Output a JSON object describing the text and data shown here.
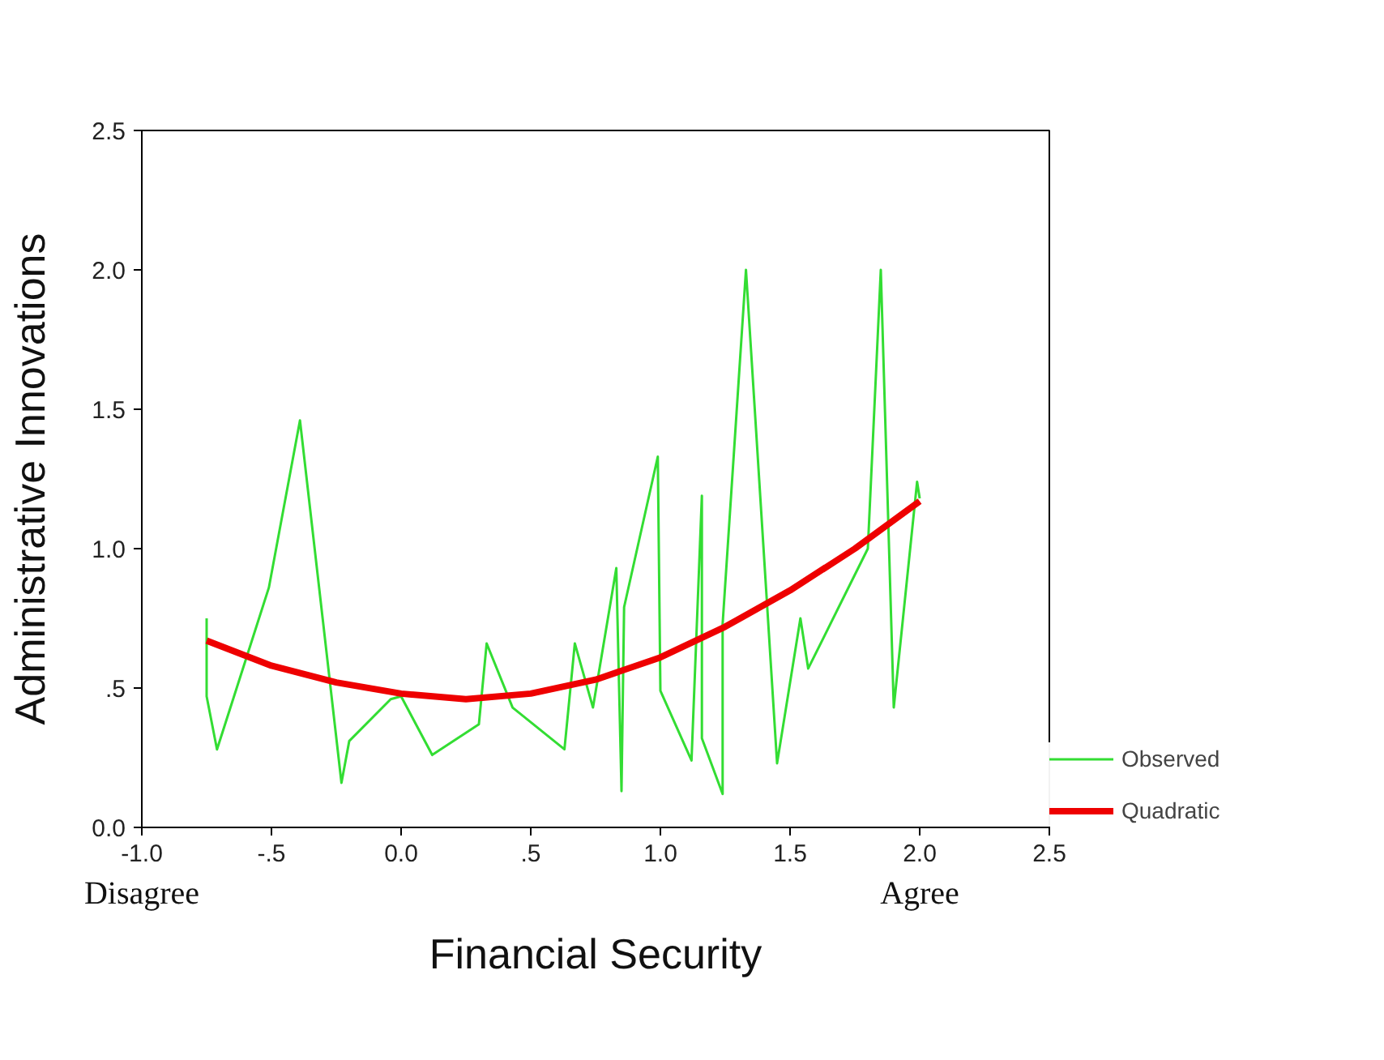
{
  "chart_data": {
    "type": "line",
    "xlabel": "Financial Security",
    "ylabel": "Administrative Innovations",
    "xlim": [
      -1.0,
      2.5
    ],
    "ylim": [
      0.0,
      2.5
    ],
    "xticks": [
      {
        "value": -1.0,
        "label": "-1.0"
      },
      {
        "value": -0.5,
        "label": "-.5"
      },
      {
        "value": 0.0,
        "label": "0.0"
      },
      {
        "value": 0.5,
        "label": ".5"
      },
      {
        "value": 1.0,
        "label": "1.0"
      },
      {
        "value": 1.5,
        "label": "1.5"
      },
      {
        "value": 2.0,
        "label": "2.0"
      },
      {
        "value": 2.5,
        "label": "2.5"
      }
    ],
    "yticks": [
      {
        "value": 0.0,
        "label": "0.0"
      },
      {
        "value": 0.5,
        "label": ".5"
      },
      {
        "value": 1.0,
        "label": "1.0"
      },
      {
        "value": 1.5,
        "label": "1.5"
      },
      {
        "value": 2.0,
        "label": "2.0"
      },
      {
        "value": 2.5,
        "label": "2.5"
      }
    ],
    "grid": false,
    "legend": "bottom right",
    "marker": "none",
    "line_style": "solid",
    "annotations": [
      "Disagree",
      "Agree"
    ],
    "series": [
      {
        "name": "Observed",
        "color": "#33dd33",
        "x": [
          -0.75,
          -0.75,
          -0.71,
          -0.51,
          -0.39,
          -0.23,
          -0.2,
          -0.04,
          0.0,
          0.12,
          0.3,
          0.33,
          0.43,
          0.63,
          0.67,
          0.74,
          0.83,
          0.85,
          0.86,
          0.99,
          1.0,
          1.12,
          1.16,
          1.16,
          1.24,
          1.24,
          1.33,
          1.45,
          1.54,
          1.57,
          1.8,
          1.85,
          1.9,
          1.99,
          2.0
        ],
        "values": [
          0.75,
          0.47,
          0.28,
          0.86,
          1.46,
          0.16,
          0.31,
          0.46,
          0.47,
          0.26,
          0.37,
          0.66,
          0.43,
          0.28,
          0.66,
          0.43,
          0.93,
          0.13,
          0.79,
          1.33,
          0.49,
          0.24,
          1.19,
          0.32,
          0.12,
          0.73,
          2.0,
          0.23,
          0.75,
          0.57,
          1.0,
          2.0,
          0.43,
          1.24,
          1.18
        ]
      },
      {
        "name": "Quadratic",
        "color": "#ee0000",
        "x": [
          -0.75,
          -0.5,
          -0.25,
          0.0,
          0.25,
          0.5,
          0.75,
          1.0,
          1.25,
          1.5,
          1.75,
          2.0
        ],
        "values": [
          0.67,
          0.58,
          0.52,
          0.48,
          0.46,
          0.48,
          0.53,
          0.61,
          0.72,
          0.85,
          1.0,
          1.17
        ]
      }
    ]
  }
}
